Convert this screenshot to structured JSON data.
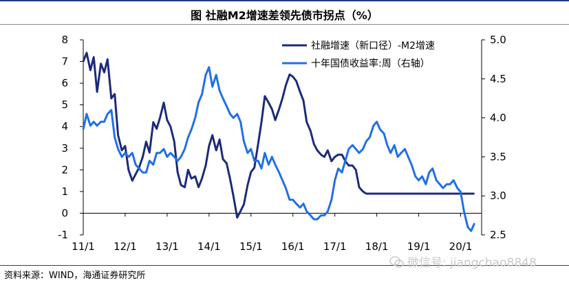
{
  "title": "图  社融M2增速差领先债市拐点（%）",
  "source": "资料来源：WIND，海通证券研究所",
  "watermark": "微信号: jiangchao8848",
  "colors": {
    "series1": "#1c2a78",
    "series2": "#1f6fe8",
    "axis": "#000000"
  },
  "chart_data": {
    "type": "line",
    "x_tick_labels": [
      "11/1",
      "12/1",
      "13/1",
      "14/1",
      "15/1",
      "16/1",
      "17/1",
      "18/1",
      "19/1",
      "20/1"
    ],
    "x_range": [
      "2011-01",
      "2020-06"
    ],
    "left_axis": {
      "range": [
        -1,
        8
      ],
      "ticks": [
        "-1",
        "0",
        "1",
        "2",
        "3",
        "4",
        "5",
        "6",
        "7",
        "8"
      ]
    },
    "right_axis": {
      "range": [
        2.5,
        5.0
      ],
      "ticks": [
        "2.5",
        "3.0",
        "3.5",
        "4.0",
        "4.5",
        "5.0"
      ]
    },
    "legend_position": "top-right",
    "series": [
      {
        "name": "社融增速（新口径）-M2增速",
        "axis": "left",
        "color": "#1c2a78",
        "t": [
          2011.0,
          2011.08,
          2011.17,
          2011.25,
          2011.33,
          2011.42,
          2011.5,
          2011.58,
          2011.67,
          2011.75,
          2011.83,
          2011.92,
          2012.0,
          2012.08,
          2012.17,
          2012.25,
          2012.33,
          2012.42,
          2012.5,
          2012.58,
          2012.67,
          2012.75,
          2012.83,
          2012.92,
          2013.0,
          2013.08,
          2013.17,
          2013.25,
          2013.33,
          2013.42,
          2013.5,
          2013.58,
          2013.67,
          2013.75,
          2013.83,
          2013.92,
          2014.0,
          2014.08,
          2014.17,
          2014.25,
          2014.33,
          2014.42,
          2014.5,
          2014.58,
          2014.67,
          2014.75,
          2014.83,
          2014.92,
          2015.0,
          2015.08,
          2015.17,
          2015.25,
          2015.33,
          2015.42,
          2015.5,
          2015.58,
          2015.67,
          2015.75,
          2015.83,
          2015.92,
          2016.0,
          2016.08,
          2016.17,
          2016.25,
          2016.33,
          2016.42,
          2016.5,
          2016.58,
          2016.67,
          2016.75,
          2016.83,
          2016.92,
          2017.0,
          2017.08,
          2017.17,
          2017.25,
          2017.33,
          2017.42,
          2017.5,
          2017.58,
          2017.67,
          2017.75,
          2017.83,
          2017.92,
          2018.0,
          2018.08,
          2018.17,
          2018.25,
          2018.33,
          2018.42,
          2018.5,
          2018.58,
          2018.67,
          2018.75,
          2018.83,
          2018.92,
          2019.0,
          2019.08,
          2019.17,
          2019.25,
          2019.33,
          2019.42,
          2019.5,
          2019.58,
          2019.67,
          2019.75,
          2019.83,
          2019.92,
          2020.0,
          2020.08,
          2020.17,
          2020.25,
          2020.33
        ],
        "values": [
          7.0,
          7.4,
          6.6,
          7.2,
          5.6,
          6.9,
          6.5,
          7.1,
          5.3,
          5.5,
          3.6,
          2.9,
          3.1,
          2.0,
          1.5,
          1.8,
          2.1,
          2.6,
          3.3,
          2.8,
          4.2,
          3.9,
          4.4,
          5.1,
          4.3,
          4.0,
          3.3,
          1.9,
          1.3,
          1.2,
          2.0,
          1.6,
          1.7,
          1.2,
          1.6,
          2.2,
          3.1,
          3.6,
          2.9,
          3.4,
          2.5,
          2.3,
          1.6,
          0.8,
          -0.2,
          0.1,
          0.4,
          1.3,
          1.9,
          2.1,
          3.2,
          4.2,
          5.4,
          5.1,
          4.8,
          4.3,
          4.8,
          5.3,
          5.9,
          6.4,
          6.3,
          6.1,
          5.6,
          5.2,
          4.2,
          3.8,
          3.2,
          2.9,
          2.7,
          2.6,
          2.9,
          2.4,
          2.6,
          2.7,
          2.7,
          2.4,
          2.2,
          2.2,
          2.0,
          1.2,
          1.0,
          0.9,
          0.9,
          0.9,
          0.9,
          0.9,
          0.9,
          0.9,
          0.9,
          0.9,
          0.9,
          0.9,
          0.9,
          0.9,
          0.9,
          0.9,
          0.9,
          0.9,
          0.9,
          0.9,
          0.9,
          0.9,
          0.9,
          0.9,
          0.9,
          0.9,
          0.9,
          0.9,
          0.9,
          0.9,
          0.9,
          0.9,
          0.9
        ]
      },
      {
        "name": "十年国债收益率:周（右轴）",
        "axis": "right",
        "color": "#1f6fe8",
        "t": [
          2011.0,
          2011.08,
          2011.17,
          2011.25,
          2011.33,
          2011.42,
          2011.5,
          2011.58,
          2011.67,
          2011.75,
          2011.83,
          2011.92,
          2012.0,
          2012.08,
          2012.17,
          2012.25,
          2012.33,
          2012.42,
          2012.5,
          2012.58,
          2012.67,
          2012.75,
          2012.83,
          2012.92,
          2013.0,
          2013.08,
          2013.17,
          2013.25,
          2013.33,
          2013.42,
          2013.5,
          2013.58,
          2013.67,
          2013.75,
          2013.83,
          2013.92,
          2014.0,
          2014.08,
          2014.17,
          2014.25,
          2014.33,
          2014.42,
          2014.5,
          2014.58,
          2014.67,
          2014.75,
          2014.83,
          2014.92,
          2015.0,
          2015.08,
          2015.17,
          2015.25,
          2015.33,
          2015.42,
          2015.5,
          2015.58,
          2015.67,
          2015.75,
          2015.83,
          2015.92,
          2016.0,
          2016.08,
          2016.17,
          2016.25,
          2016.33,
          2016.42,
          2016.5,
          2016.58,
          2016.67,
          2016.75,
          2016.83,
          2016.92,
          2017.0,
          2017.08,
          2017.17,
          2017.25,
          2017.33,
          2017.42,
          2017.5,
          2017.58,
          2017.67,
          2017.75,
          2017.83,
          2017.92,
          2018.0,
          2018.08,
          2018.17,
          2018.25,
          2018.33,
          2018.42,
          2018.5,
          2018.58,
          2018.67,
          2018.75,
          2018.83,
          2018.92,
          2019.0,
          2019.08,
          2019.17,
          2019.25,
          2019.33,
          2019.42,
          2019.5,
          2019.58,
          2019.67,
          2019.75,
          2019.83,
          2019.92,
          2020.0,
          2020.08,
          2020.17,
          2020.25,
          2020.33
        ],
        "values": [
          3.85,
          4.05,
          3.9,
          3.95,
          3.9,
          3.95,
          3.95,
          4.05,
          4.1,
          3.75,
          3.6,
          3.5,
          3.55,
          3.5,
          3.55,
          3.4,
          3.35,
          3.3,
          3.3,
          3.45,
          3.4,
          3.55,
          3.55,
          3.6,
          3.5,
          3.55,
          3.5,
          3.45,
          3.5,
          3.6,
          3.75,
          3.85,
          4.0,
          4.2,
          4.3,
          4.55,
          4.65,
          4.4,
          4.55,
          4.35,
          4.25,
          4.15,
          4.05,
          4.0,
          4.05,
          3.95,
          3.7,
          3.55,
          3.6,
          3.45,
          3.45,
          3.35,
          3.55,
          3.4,
          3.5,
          3.4,
          3.3,
          3.2,
          3.1,
          2.95,
          2.95,
          2.9,
          2.85,
          2.9,
          2.8,
          2.75,
          2.7,
          2.7,
          2.75,
          2.75,
          2.8,
          2.95,
          3.2,
          3.35,
          3.3,
          3.45,
          3.6,
          3.65,
          3.6,
          3.55,
          3.6,
          3.7,
          3.75,
          3.9,
          3.95,
          3.85,
          3.8,
          3.65,
          3.55,
          3.65,
          3.5,
          3.55,
          3.6,
          3.5,
          3.4,
          3.25,
          3.2,
          3.25,
          3.15,
          3.3,
          3.35,
          3.2,
          3.15,
          3.1,
          3.15,
          3.15,
          3.2,
          3.1,
          3.05,
          2.8,
          2.6,
          2.55,
          2.65
        ]
      }
    ]
  }
}
